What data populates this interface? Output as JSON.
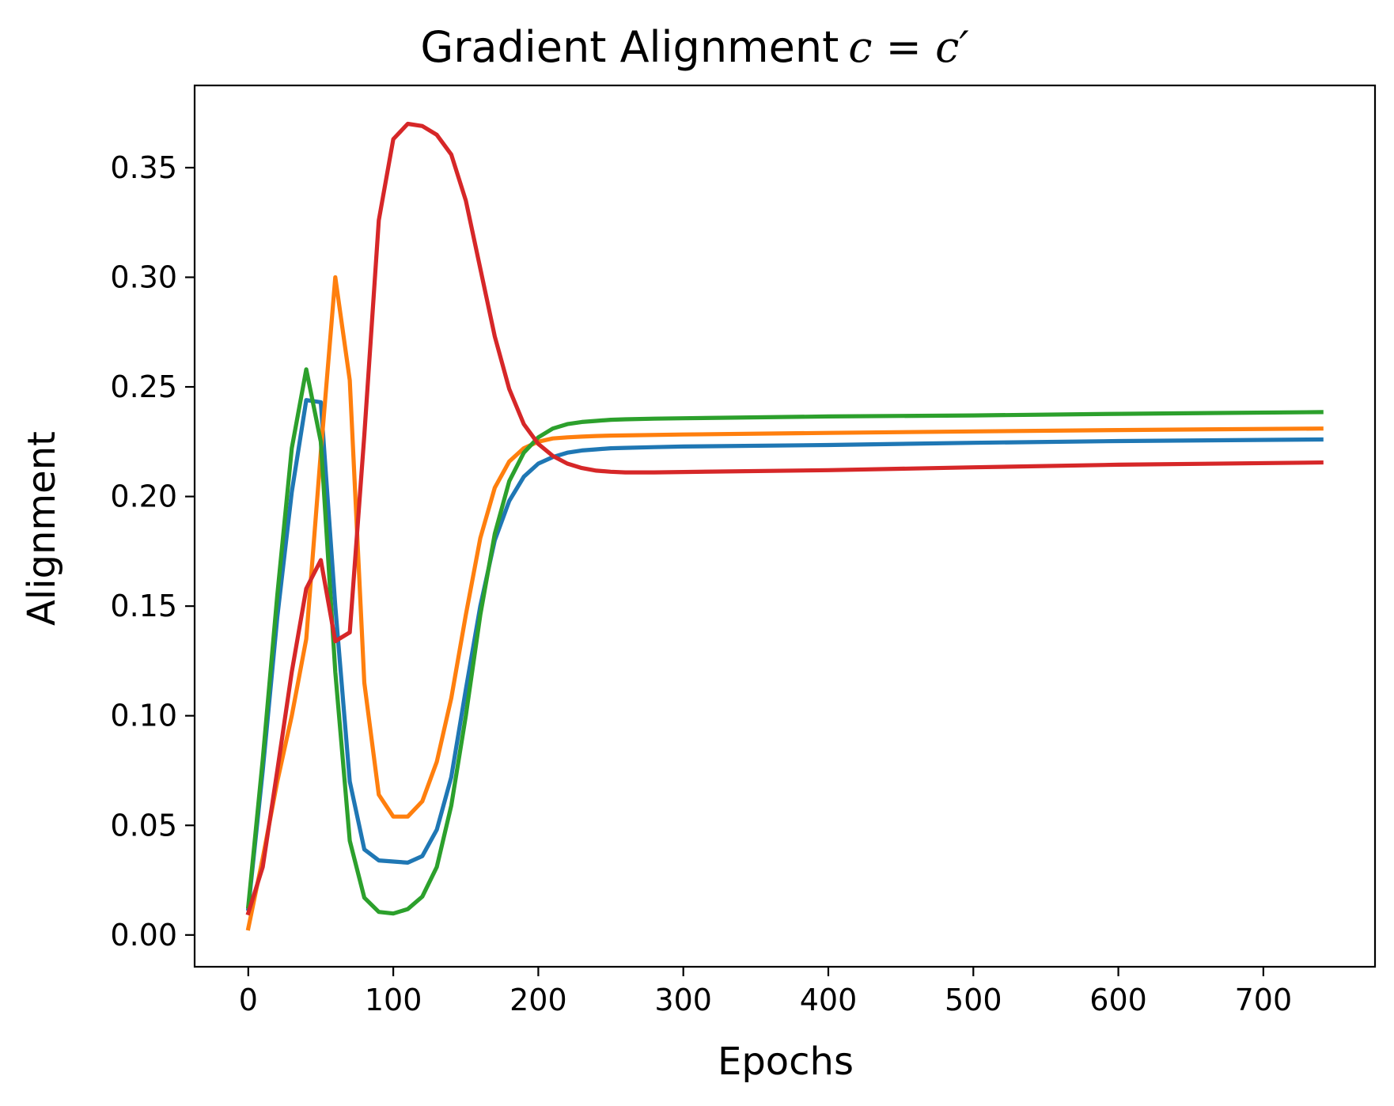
{
  "chart_data": {
    "type": "line",
    "title": "Gradient Alignment",
    "title_math": "c = c′",
    "xlabel": "Epochs",
    "ylabel": "Alignment",
    "xlim": [
      -37,
      777
    ],
    "ylim": [
      -0.0145,
      0.3875
    ],
    "xticks": [
      0,
      100,
      200,
      300,
      400,
      500,
      600,
      700
    ],
    "xtick_labels": [
      "0",
      "100",
      "200",
      "300",
      "400",
      "500",
      "600",
      "700"
    ],
    "yticks": [
      0.0,
      0.05,
      0.1,
      0.15,
      0.2,
      0.25,
      0.3,
      0.35
    ],
    "ytick_labels": [
      "0.00",
      "0.05",
      "0.10",
      "0.15",
      "0.20",
      "0.25",
      "0.30",
      "0.35"
    ],
    "grid": false,
    "legend": "none",
    "series": [
      {
        "color": "#1f77b4",
        "x": [
          0,
          10,
          20,
          30,
          40,
          50,
          60,
          70,
          80,
          90,
          100,
          110,
          120,
          130,
          140,
          150,
          160,
          170,
          180,
          190,
          200,
          210,
          220,
          230,
          240,
          250,
          260,
          280,
          300,
          400,
          500,
          600,
          740
        ],
        "y": [
          0.012,
          0.075,
          0.145,
          0.202,
          0.244,
          0.243,
          0.15,
          0.07,
          0.039,
          0.034,
          0.0335,
          0.033,
          0.036,
          0.048,
          0.072,
          0.112,
          0.15,
          0.18,
          0.198,
          0.209,
          0.215,
          0.218,
          0.22,
          0.221,
          0.2215,
          0.222,
          0.2222,
          0.2225,
          0.2228,
          0.2235,
          0.2245,
          0.2253,
          0.226
        ]
      },
      {
        "color": "#ff7f0e",
        "x": [
          0,
          10,
          20,
          30,
          40,
          50,
          60,
          70,
          80,
          90,
          100,
          110,
          120,
          130,
          140,
          150,
          160,
          170,
          180,
          190,
          200,
          210,
          220,
          230,
          240,
          250,
          300,
          400,
          500,
          600,
          740
        ],
        "y": [
          0.003,
          0.035,
          0.07,
          0.1,
          0.135,
          0.22,
          0.3,
          0.253,
          0.115,
          0.064,
          0.054,
          0.054,
          0.061,
          0.079,
          0.108,
          0.146,
          0.181,
          0.204,
          0.216,
          0.222,
          0.225,
          0.2265,
          0.227,
          0.2273,
          0.2276,
          0.2278,
          0.2283,
          0.229,
          0.2297,
          0.2303,
          0.231
        ]
      },
      {
        "color": "#2ca02c",
        "x": [
          0,
          10,
          20,
          30,
          40,
          50,
          60,
          70,
          80,
          90,
          100,
          110,
          120,
          130,
          140,
          150,
          160,
          170,
          180,
          190,
          200,
          210,
          220,
          230,
          240,
          250,
          260,
          280,
          300,
          400,
          500,
          600,
          740
        ],
        "y": [
          0.013,
          0.08,
          0.155,
          0.222,
          0.258,
          0.225,
          0.12,
          0.043,
          0.017,
          0.0105,
          0.0098,
          0.0118,
          0.0175,
          0.031,
          0.059,
          0.1,
          0.146,
          0.183,
          0.207,
          0.22,
          0.227,
          0.231,
          0.233,
          0.234,
          0.2345,
          0.235,
          0.2352,
          0.2355,
          0.2357,
          0.2365,
          0.237,
          0.2377,
          0.2385
        ]
      },
      {
        "color": "#d62728",
        "x": [
          0,
          10,
          20,
          30,
          40,
          50,
          60,
          70,
          80,
          90,
          100,
          110,
          120,
          130,
          140,
          150,
          160,
          170,
          180,
          190,
          200,
          210,
          220,
          230,
          240,
          250,
          260,
          280,
          300,
          400,
          500,
          600,
          740
        ],
        "y": [
          0.01,
          0.031,
          0.075,
          0.12,
          0.158,
          0.171,
          0.134,
          0.138,
          0.228,
          0.326,
          0.363,
          0.37,
          0.369,
          0.365,
          0.356,
          0.335,
          0.304,
          0.273,
          0.249,
          0.233,
          0.224,
          0.2185,
          0.215,
          0.213,
          0.2118,
          0.2113,
          0.211,
          0.211,
          0.2112,
          0.212,
          0.2133,
          0.2145,
          0.2155
        ]
      }
    ]
  }
}
